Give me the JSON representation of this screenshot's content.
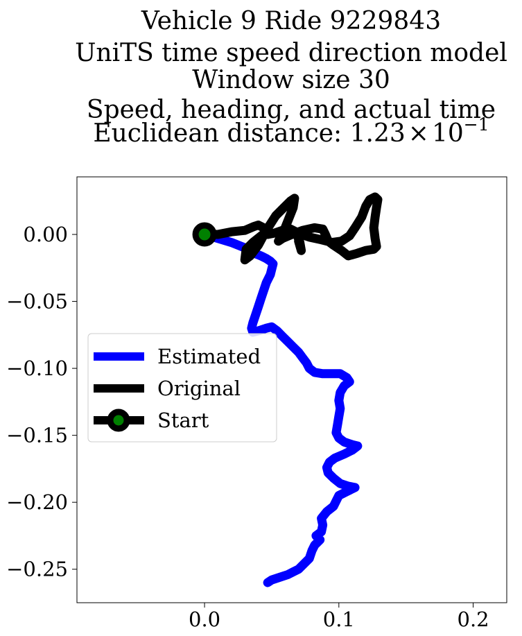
{
  "chart_data": {
    "type": "line",
    "title_lines": [
      "Vehicle 9 Ride 9229843",
      "UniTS time speed direction model",
      "Window size 30",
      "Speed, heading, and actual time"
    ],
    "title_metric": {
      "label": "Euclidean distance: ",
      "mantissa": "1.23",
      "times": "×",
      "base": "10",
      "exponent": "−1"
    },
    "xlim": [
      -0.095,
      0.225
    ],
    "ylim": [
      -0.275,
      0.043
    ],
    "x_ticks": [
      {
        "value": 0.0,
        "label": "0.0"
      },
      {
        "value": 0.1,
        "label": "0.1"
      },
      {
        "value": 0.2,
        "label": "0.2"
      }
    ],
    "y_ticks": [
      {
        "value": 0.0,
        "label": "0.00"
      },
      {
        "value": -0.05,
        "label": "−0.05"
      },
      {
        "value": -0.1,
        "label": "−0.10"
      },
      {
        "value": -0.15,
        "label": "−0.15"
      },
      {
        "value": -0.2,
        "label": "−0.20"
      },
      {
        "value": -0.25,
        "label": "−0.25"
      }
    ],
    "legend_position": "center-left",
    "series": [
      {
        "name": "Estimated",
        "color": "#0000ff",
        "points": [
          [
            0.0,
            0.0
          ],
          [
            0.01,
            -0.003
          ],
          [
            0.02,
            -0.006
          ],
          [
            0.03,
            -0.01
          ],
          [
            0.037,
            -0.014
          ],
          [
            0.042,
            -0.016
          ],
          [
            0.046,
            -0.018
          ],
          [
            0.049,
            -0.02
          ],
          [
            0.051,
            -0.022
          ],
          [
            0.05,
            -0.026
          ],
          [
            0.049,
            -0.03
          ],
          [
            0.046,
            -0.036
          ],
          [
            0.044,
            -0.042
          ],
          [
            0.042,
            -0.048
          ],
          [
            0.04,
            -0.054
          ],
          [
            0.038,
            -0.06
          ],
          [
            0.036,
            -0.066
          ],
          [
            0.035,
            -0.07
          ],
          [
            0.036,
            -0.073
          ],
          [
            0.04,
            -0.072
          ],
          [
            0.046,
            -0.07
          ],
          [
            0.05,
            -0.069
          ],
          [
            0.054,
            -0.072
          ],
          [
            0.058,
            -0.076
          ],
          [
            0.062,
            -0.08
          ],
          [
            0.066,
            -0.084
          ],
          [
            0.07,
            -0.088
          ],
          [
            0.073,
            -0.092
          ],
          [
            0.076,
            -0.096
          ],
          [
            0.078,
            -0.1
          ],
          [
            0.082,
            -0.103
          ],
          [
            0.088,
            -0.104
          ],
          [
            0.095,
            -0.104
          ],
          [
            0.101,
            -0.104
          ],
          [
            0.106,
            -0.107
          ],
          [
            0.108,
            -0.11
          ],
          [
            0.104,
            -0.113
          ],
          [
            0.101,
            -0.118
          ],
          [
            0.1,
            -0.124
          ],
          [
            0.101,
            -0.13
          ],
          [
            0.1,
            -0.136
          ],
          [
            0.099,
            -0.142
          ],
          [
            0.098,
            -0.148
          ],
          [
            0.1,
            -0.152
          ],
          [
            0.104,
            -0.155
          ],
          [
            0.11,
            -0.157
          ],
          [
            0.114,
            -0.158
          ],
          [
            0.11,
            -0.161
          ],
          [
            0.104,
            -0.164
          ],
          [
            0.097,
            -0.167
          ],
          [
            0.093,
            -0.17
          ],
          [
            0.091,
            -0.174
          ],
          [
            0.092,
            -0.178
          ],
          [
            0.096,
            -0.182
          ],
          [
            0.101,
            -0.186
          ],
          [
            0.107,
            -0.188
          ],
          [
            0.112,
            -0.189
          ],
          [
            0.106,
            -0.192
          ],
          [
            0.1,
            -0.195
          ],
          [
            0.098,
            -0.199
          ],
          [
            0.096,
            -0.203
          ],
          [
            0.091,
            -0.207
          ],
          [
            0.087,
            -0.212
          ],
          [
            0.088,
            -0.217
          ],
          [
            0.087,
            -0.222
          ],
          [
            0.083,
            -0.225
          ],
          [
            0.086,
            -0.228
          ],
          [
            0.082,
            -0.232
          ],
          [
            0.08,
            -0.236
          ],
          [
            0.078,
            -0.242
          ],
          [
            0.074,
            -0.246
          ],
          [
            0.07,
            -0.25
          ],
          [
            0.066,
            -0.252
          ],
          [
            0.062,
            -0.254
          ],
          [
            0.056,
            -0.256
          ],
          [
            0.05,
            -0.258
          ],
          [
            0.047,
            -0.26
          ]
        ]
      },
      {
        "name": "Original",
        "color": "#000000",
        "points": [
          [
            0.0,
            0.0
          ],
          [
            0.01,
            0.0
          ],
          [
            0.02,
            0.002
          ],
          [
            0.03,
            0.003
          ],
          [
            0.037,
            0.006
          ],
          [
            0.04,
            0.007
          ],
          [
            0.044,
            0.005
          ],
          [
            0.046,
            0.002
          ],
          [
            0.041,
            -0.002
          ],
          [
            0.036,
            -0.006
          ],
          [
            0.031,
            -0.011
          ],
          [
            0.03,
            -0.019
          ],
          [
            0.034,
            -0.016
          ],
          [
            0.04,
            -0.008
          ],
          [
            0.046,
            0.003
          ],
          [
            0.053,
            0.014
          ],
          [
            0.059,
            0.02
          ],
          [
            0.064,
            0.025
          ],
          [
            0.067,
            0.027
          ],
          [
            0.066,
            0.02
          ],
          [
            0.062,
            0.01
          ],
          [
            0.058,
            0.0
          ],
          [
            0.055,
            -0.005
          ],
          [
            0.058,
            -0.003
          ],
          [
            0.065,
            0.0
          ],
          [
            0.073,
            0.003
          ],
          [
            0.082,
            0.005
          ],
          [
            0.088,
            0.004
          ],
          [
            0.09,
            0.0
          ],
          [
            0.092,
            -0.005
          ],
          [
            0.096,
            -0.008
          ],
          [
            0.102,
            -0.012
          ],
          [
            0.107,
            -0.016
          ],
          [
            0.114,
            -0.014
          ],
          [
            0.12,
            -0.012
          ],
          [
            0.126,
            -0.011
          ],
          [
            0.128,
            -0.009
          ],
          [
            0.127,
            -0.003
          ],
          [
            0.126,
            0.005
          ],
          [
            0.127,
            0.013
          ],
          [
            0.128,
            0.02
          ],
          [
            0.129,
            0.026
          ],
          [
            0.127,
            0.028
          ],
          [
            0.123,
            0.026
          ],
          [
            0.12,
            0.021
          ],
          [
            0.117,
            0.013
          ],
          [
            0.112,
            0.005
          ],
          [
            0.108,
            -0.001
          ],
          [
            0.102,
            -0.005
          ],
          [
            0.095,
            -0.006
          ],
          [
            0.087,
            -0.004
          ],
          [
            0.078,
            -0.002
          ],
          [
            0.072,
            0.0
          ],
          [
            0.07,
            -0.005
          ],
          [
            0.072,
            -0.012
          ],
          [
            0.071,
            -0.006
          ],
          [
            0.068,
            0.002
          ],
          [
            0.064,
            0.004
          ],
          [
            0.058,
            0.003
          ],
          [
            0.052,
            0.001
          ],
          [
            0.047,
            0.0
          ]
        ]
      }
    ],
    "legend_entries": [
      {
        "label": "Estimated",
        "color": "#0000ff",
        "marker": false
      },
      {
        "label": "Original",
        "color": "#000000",
        "marker": false
      },
      {
        "label": "Start",
        "color": "#000000",
        "marker": true,
        "marker_face": "#008000"
      }
    ],
    "start_point": {
      "x": 0.0,
      "y": 0.0,
      "marker_edge": "#000000",
      "marker_face": "#008000"
    }
  }
}
